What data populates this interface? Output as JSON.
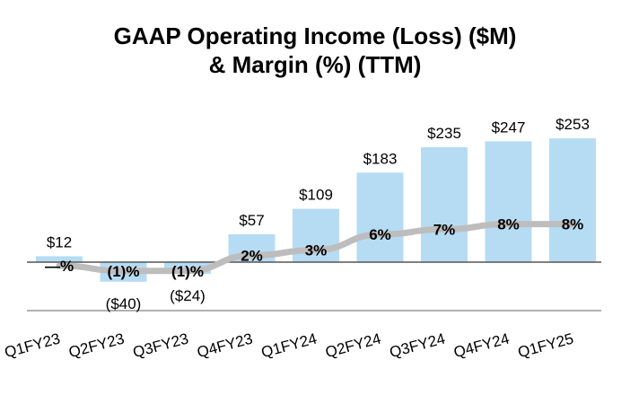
{
  "chart_data": {
    "type": "bar",
    "title_line1": "GAAP Operating Income (Loss) ($M)",
    "title_line2": "& Margin (%) (TTM)",
    "categories": [
      "Q1FY23",
      "Q2FY23",
      "Q3FY23",
      "Q4FY23",
      "Q1FY24",
      "Q2FY24",
      "Q3FY24",
      "Q4FY24",
      "Q1FY25"
    ],
    "series": [
      {
        "name": "GAAP Operating Income (Loss) ($M)",
        "type": "bar",
        "values": [
          12,
          -40,
          -24,
          57,
          109,
          183,
          235,
          247,
          253
        ],
        "labels": [
          "$12",
          "($40)",
          "($24)",
          "$57",
          "$109",
          "$183",
          "$235",
          "$247",
          "$253"
        ],
        "color": "#B6DCF4"
      },
      {
        "name": "Margin (%)",
        "type": "line",
        "values": [
          0,
          -1,
          -1,
          2,
          3,
          6,
          7,
          8,
          8
        ],
        "labels": [
          "—%",
          "(1)%",
          "(1)%",
          "2%",
          "3%",
          "6%",
          "7%",
          "8%",
          "8%"
        ],
        "color": "#BDBDBD"
      }
    ],
    "xlabel": "",
    "ylabel": "",
    "grid": false
  }
}
